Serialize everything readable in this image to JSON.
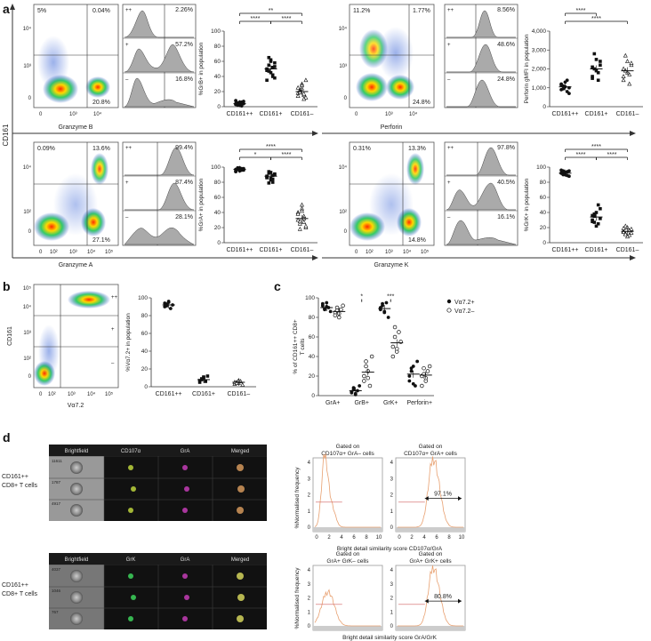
{
  "panel_labels": {
    "a": "a",
    "b": "b",
    "c": "c",
    "d": "d"
  },
  "common": {
    "cd161": "CD161",
    "dot": "·",
    "gate_pp": "++",
    "gate_p": "+",
    "gate_m": "–",
    "tick_10_2": "10²",
    "tick_10_3": "10³",
    "tick_10_4": "10⁴",
    "tick_10_5": "10⁵",
    "tick_0": "0",
    "cats": [
      "CD161++",
      "CD161+",
      "CD161–"
    ]
  },
  "a": {
    "grb": {
      "q_ul": "5%",
      "q_ur": "0.04%",
      "q_lr": "20.8%",
      "xlabel": "Granzyme B",
      "hist": [
        "2.26%",
        "57.2%",
        "16.8%"
      ],
      "ylabel": "%GrB+ in population",
      "yticks": [
        "0",
        "20",
        "40",
        "60",
        "80",
        "100"
      ],
      "sig": [
        "**",
        "****",
        "****"
      ]
    },
    "perf": {
      "q_ul": "11.2%",
      "q_ur": "1.77%",
      "q_lr": "24.8%",
      "xlabel": "Perforin",
      "hist": [
        "8.56%",
        "48.6%",
        "24.8%"
      ],
      "ylabel": "Perforin gMFI in population",
      "yticks": [
        "0",
        "1,000",
        "2,000",
        "3,000",
        "4,000"
      ],
      "sig": [
        "****",
        "****"
      ]
    },
    "gra": {
      "q_ul": "0.09%",
      "q_ur": "13.6%",
      "q_lr": "27.1%",
      "xlabel": "Granzyme A",
      "hist": [
        "99.4%",
        "87.4%",
        "28.1%"
      ],
      "ylabel": "%GrA+ in population",
      "yticks": [
        "0",
        "20",
        "40",
        "60",
        "80",
        "100"
      ],
      "sig": [
        "*",
        "****",
        "****"
      ]
    },
    "grk": {
      "q_ul": "0.31%",
      "q_ur": "13.3%",
      "q_lr": "14.8%",
      "xlabel": "Granzyme K",
      "hist": [
        "97.8%",
        "40.5%",
        "16.1%"
      ],
      "ylabel": "%GrK+ in population",
      "yticks": [
        "0",
        "20",
        "40",
        "60",
        "80",
        "100"
      ],
      "sig": [
        "****",
        "****",
        "****"
      ]
    }
  },
  "b": {
    "xlabel": "Vα7.2",
    "ylabel": "%Vα7.2+ in population",
    "yticks": [
      "0",
      "20",
      "40",
      "60",
      "80",
      "100"
    ]
  },
  "c": {
    "ylabel1": "% of CD161++ CD8+",
    "ylabel2": "T cells",
    "legend": [
      "Vα7.2+",
      "Vα7.2–"
    ],
    "cats": [
      "GrA+",
      "GrB+",
      "GrK+",
      "Perforin+"
    ],
    "yticks": [
      "0",
      "20",
      "40",
      "60",
      "80",
      "100"
    ],
    "sig": [
      "*",
      "***"
    ]
  },
  "d": {
    "top_headers": [
      "Brightfield",
      "CD107α",
      "GrA",
      "Merged"
    ],
    "top_ids": [
      "11611",
      "1787",
      "4917"
    ],
    "bot_headers": [
      "Brightfield",
      "GrK",
      "GrA",
      "Merged"
    ],
    "bot_ids": [
      "4037",
      "1046",
      "767"
    ],
    "row_label1": "CD161++",
    "row_label2": "CD8+ T cells",
    "top_hist_titles": [
      [
        "Gated on",
        "CD107α+ GrA– cells"
      ],
      [
        "Gated on",
        "CD107α+ GrA+ cells"
      ]
    ],
    "top_pct": "97.1%",
    "top_xlabel": "Bright detail similarity score CD107α/GrA",
    "bot_hist_titles": [
      [
        "Gated on",
        "GrA+ GrK– cells"
      ],
      [
        "Gated on",
        "GrA+ GrK+ cells"
      ]
    ],
    "bot_pct": "80.8%",
    "bot_xlabel": "Bright detail similarity score GrA/GrK",
    "hist_ylabel": "%Normalised frequency",
    "hist_yticks": [
      "0",
      "1",
      "2",
      "3",
      "4"
    ],
    "hist_xticks": [
      "0",
      "2",
      "4",
      "6",
      "8",
      "10"
    ]
  },
  "chart_data": [
    {
      "type": "scatter",
      "title": "",
      "ylabel": "%GrB+ in population",
      "categories": [
        "CD161++",
        "CD161+",
        "CD161–"
      ],
      "ylim": [
        0,
        100
      ],
      "series": [
        {
          "values": [
            [
              3,
              5,
              2,
              6,
              4,
              8,
              3,
              5,
              1,
              7,
              4,
              2,
              6,
              5
            ],
            [
              48,
              55,
              60,
              42,
              38,
              50,
              65,
              45,
              52,
              58,
              35,
              47,
              62,
              40,
              53
            ],
            [
              18,
              22,
              30,
              15,
              12,
              25,
              20,
              28,
              10,
              35,
              14,
              19,
              24,
              17
            ]
          ]
        }
      ],
      "means": [
        4,
        50,
        20
      ]
    },
    {
      "type": "scatter",
      "title": "",
      "ylabel": "Perforin gMFI in population",
      "categories": [
        "CD161++",
        "CD161+",
        "CD161–"
      ],
      "ylim": [
        0,
        4000
      ],
      "series": [
        {
          "values": [
            [
              900,
              1100,
              1300,
              800,
              1000,
              1200,
              950,
              1050,
              1400,
              700,
              1150
            ],
            [
              1500,
              2000,
              2500,
              1800,
              2200,
              1600,
              2800,
              1900,
              1400,
              2400,
              2100
            ],
            [
              1400,
              1900,
              2400,
              1700,
              2200,
              1600,
              2700,
              1800,
              1200,
              2300,
              2000
            ]
          ]
        }
      ],
      "means": [
        1050,
        2000,
        1900
      ]
    },
    {
      "type": "scatter",
      "title": "",
      "ylabel": "%GrA+ in population",
      "categories": [
        "CD161++",
        "CD161+",
        "CD161–"
      ],
      "ylim": [
        0,
        100
      ],
      "series": [
        {
          "values": [
            [
              97,
              99,
              95,
              98,
              96,
              94,
              99,
              97,
              96,
              98,
              95,
              97,
              99,
              96
            ],
            [
              88,
              92,
              85,
              80,
              90,
              86,
              94,
              83,
              89,
              91,
              87,
              79,
              93,
              84
            ],
            [
              30,
              25,
              45,
              35,
              20,
              40,
              28,
              50,
              32,
              22,
              38,
              18,
              42,
              27
            ]
          ]
        }
      ],
      "means": [
        97,
        88,
        32
      ]
    },
    {
      "type": "scatter",
      "title": "",
      "ylabel": "%GrK+ in population",
      "categories": [
        "CD161++",
        "CD161+",
        "CD161–"
      ],
      "ylim": [
        0,
        100
      ],
      "series": [
        {
          "values": [
            [
              92,
              95,
              90,
              94,
              88,
              96,
              91,
              93,
              89,
              95,
              92,
              90
            ],
            [
              30,
              35,
              40,
              25,
              45,
              28,
              38,
              22,
              50,
              32,
              36,
              27
            ],
            [
              15,
              12,
              20,
              10,
              18,
              14,
              22,
              8,
              16,
              13,
              19,
              11
            ]
          ]
        }
      ],
      "means": [
        92,
        34,
        15
      ]
    },
    {
      "type": "scatter",
      "title": "",
      "ylabel": "%Vα7.2+ in population",
      "categories": [
        "CD161++",
        "CD161+",
        "CD161–"
      ],
      "ylim": [
        0,
        100
      ],
      "series": [
        {
          "values": [
            [
              90,
              93,
              95,
              88,
              92,
              94,
              91,
              96
            ],
            [
              5,
              8,
              10,
              6,
              12,
              7,
              9,
              11
            ],
            [
              3,
              5,
              4,
              6,
              2,
              5,
              4,
              7
            ]
          ]
        }
      ],
      "means": [
        92,
        8,
        5
      ]
    },
    {
      "type": "scatter",
      "title": "",
      "ylabel": "% of CD161++ CD8+ T cells",
      "categories": [
        "GrA+",
        "GrB+",
        "GrK+",
        "Perforin+"
      ],
      "ylim": [
        0,
        100
      ],
      "series": [
        {
          "name": "Vα7.2+",
          "values": [
            [
              92,
              88,
              95,
              90,
              86,
              94,
              89,
              91
            ],
            [
              3,
              8,
              2,
              5,
              10,
              4,
              6,
              1
            ],
            [
              88,
              92,
              85,
              95,
              80,
              90,
              94,
              86
            ],
            [
              15,
              25,
              30,
              10,
              35,
              20,
              28,
              12
            ]
          ],
          "means": [
            90,
            5,
            89,
            22
          ]
        },
        {
          "name": "Vα7.2–",
          "values": [
            [
              85,
              90,
              80,
              88,
              92,
              82,
              87,
              84
            ],
            [
              15,
              30,
              25,
              10,
              40,
              20,
              35,
              18
            ],
            [
              50,
              60,
              45,
              65,
              55,
              40,
              70,
              48
            ],
            [
              20,
              28,
              15,
              25,
              30,
              10,
              22,
              18
            ]
          ],
          "means": [
            86,
            24,
            54,
            21
          ]
        }
      ]
    }
  ]
}
